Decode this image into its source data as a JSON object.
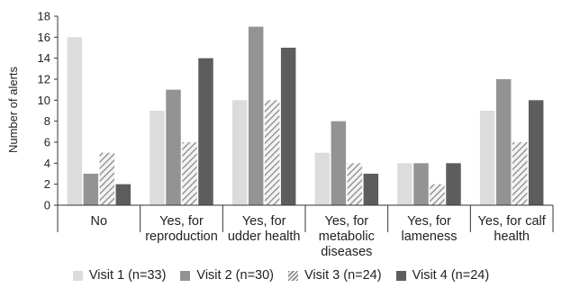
{
  "chart_data": {
    "type": "bar",
    "ylabel": "Number of alerts",
    "xlabel": "",
    "ylim": [
      0,
      18
    ],
    "ytick_step": 2,
    "yticks": [
      "0",
      "2",
      "4",
      "6",
      "8",
      "10",
      "12",
      "14",
      "16",
      "18"
    ],
    "grid": false,
    "legend_position": "bottom",
    "categories": [
      [
        "No"
      ],
      [
        "Yes, for",
        "reproduction"
      ],
      [
        "Yes, for",
        "udder health"
      ],
      [
        "Yes, for",
        "metabolic",
        "diseases"
      ],
      [
        "Yes, for",
        "lameness"
      ],
      [
        "Yes, for calf",
        "health"
      ]
    ],
    "series": [
      {
        "name": "Visit 1 (n=33)",
        "color": "#dcdcdc",
        "pattern": "solid",
        "values": [
          16,
          9,
          10,
          5,
          4,
          9
        ]
      },
      {
        "name": "Visit 2 (n=30)",
        "color": "#939393",
        "pattern": "solid",
        "values": [
          3,
          11,
          17,
          8,
          4,
          12
        ]
      },
      {
        "name": "Visit 3 (n=24)",
        "color": "#bdbdbd",
        "pattern": "hatch",
        "values": [
          5,
          6,
          10,
          4,
          2,
          6
        ]
      },
      {
        "name": "Visit 4 (n=24)",
        "color": "#5d5d5d",
        "pattern": "solid",
        "values": [
          2,
          14,
          15,
          3,
          4,
          10
        ]
      }
    ]
  }
}
